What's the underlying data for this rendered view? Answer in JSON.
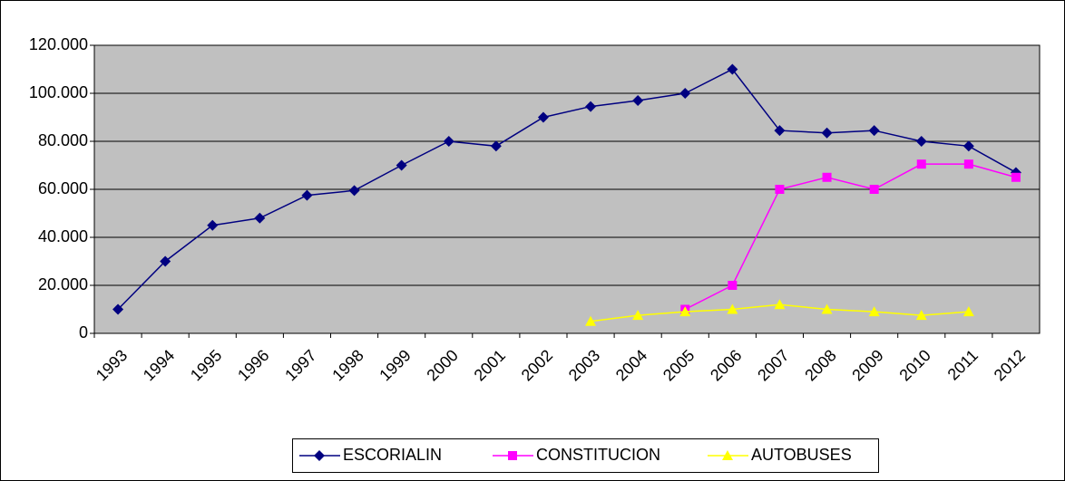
{
  "chart_data": {
    "type": "line",
    "categories": [
      "1993",
      "1994",
      "1995",
      "1996",
      "1997",
      "1998",
      "1999",
      "2000",
      "2001",
      "2002",
      "2003",
      "2004",
      "2005",
      "2006",
      "2007",
      "2008",
      "2009",
      "2010",
      "2011",
      "2012"
    ],
    "series": [
      {
        "name": "ESCORIALIN",
        "color": "#000080",
        "marker": "diamond",
        "values": [
          10000,
          30000,
          45000,
          48000,
          57500,
          59500,
          70000,
          80000,
          78000,
          90000,
          94500,
          97000,
          100000,
          110000,
          84500,
          83500,
          84500,
          80000,
          78000,
          67000
        ]
      },
      {
        "name": "CONSTITUCION",
        "color": "#ff00ff",
        "marker": "square",
        "values": [
          null,
          null,
          null,
          null,
          null,
          null,
          null,
          null,
          null,
          null,
          null,
          null,
          10000,
          20000,
          60000,
          65000,
          60000,
          70500,
          70500,
          65000
        ]
      },
      {
        "name": "AUTOBUSES",
        "color": "#ffff00",
        "marker": "triangle",
        "values": [
          null,
          null,
          null,
          null,
          null,
          null,
          null,
          null,
          null,
          null,
          5000,
          7500,
          9000,
          10000,
          12000,
          10000,
          9000,
          7500,
          9000,
          null
        ]
      }
    ],
    "ylim": [
      0,
      120000
    ],
    "yticks": [
      0,
      {
        "value": 20000,
        "label": "20.000"
      },
      {
        "value": 40000,
        "label": "40.000"
      },
      {
        "value": 60000,
        "label": "60.000"
      },
      {
        "value": 80000,
        "label": "80.000"
      },
      {
        "value": 100000,
        "label": "100.000"
      },
      {
        "value": 120000,
        "label": "120.000"
      }
    ],
    "grid": true,
    "legend": "bottom"
  }
}
